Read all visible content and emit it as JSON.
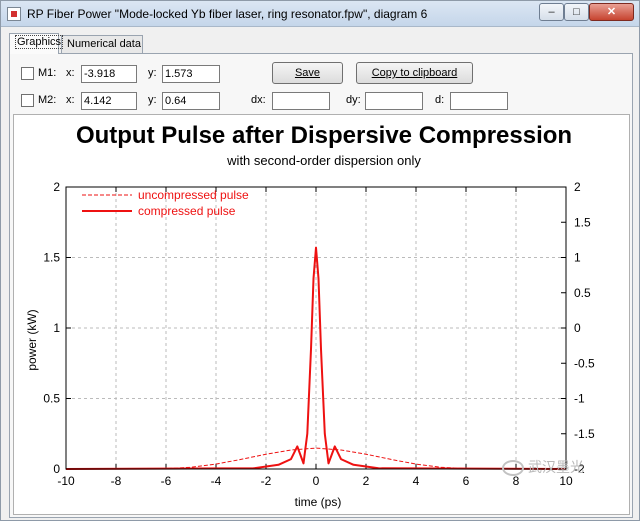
{
  "window": {
    "title": "RP Fiber Power \"Mode-locked Yb fiber laser, ring resonator.fpw\", diagram 6",
    "min_glyph": "–",
    "max_glyph": "□",
    "close_glyph": "✕"
  },
  "tabs": [
    {
      "label": "Graphics"
    },
    {
      "label": "Numerical data"
    }
  ],
  "markers": {
    "m1": {
      "label": "M1:",
      "x_label": "x:",
      "x_value": "-3.918",
      "y_label": "y:",
      "y_value": "1.573"
    },
    "m2": {
      "label": "M2:",
      "x_label": "x:",
      "x_value": "4.142",
      "y_label": "y:",
      "y_value": "0.64"
    },
    "dx_label": "dx:",
    "dy_label": "dy:",
    "d_label": "d:",
    "dx_value": "",
    "dy_value": "",
    "d_value": ""
  },
  "buttons": {
    "save_label": "Save",
    "copy_label": "Copy to clipboard"
  },
  "chart_data": {
    "type": "line",
    "title": "Output Pulse after Dispersive Compression",
    "subtitle": "with second-order dispersion only",
    "xlabel": "time (ps)",
    "ylabel": "power (kW)",
    "xlim": [
      -10,
      10
    ],
    "ylim": [
      0,
      2
    ],
    "xticks": [
      -10,
      -8,
      -6,
      -4,
      -2,
      0,
      2,
      4,
      6,
      8,
      10
    ],
    "yticks": [
      0,
      0.5,
      1,
      1.5,
      2
    ],
    "y2lim": [
      -2,
      2
    ],
    "y2ticks": [
      -2,
      -1.5,
      -1,
      -0.5,
      0,
      0.5,
      1,
      1.5,
      2
    ],
    "grid": true,
    "legend_position": "top-left",
    "color": "#ee1111",
    "series": [
      {
        "name": "uncompressed pulse",
        "style": "dashed",
        "x": [
          -10,
          -6,
          -5,
          -4,
          -3,
          -2,
          -1,
          0,
          1,
          2,
          3,
          4,
          5,
          6,
          10
        ],
        "y": [
          0,
          0.003,
          0.012,
          0.035,
          0.068,
          0.105,
          0.135,
          0.148,
          0.135,
          0.105,
          0.068,
          0.035,
          0.012,
          0.003,
          0
        ]
      },
      {
        "name": "compressed pulse",
        "style": "solid",
        "x": [
          -10,
          -2.5,
          -1.5,
          -1.0,
          -0.75,
          -0.5,
          -0.35,
          -0.2,
          -0.1,
          0,
          0.1,
          0.2,
          0.35,
          0.5,
          0.75,
          1.0,
          1.5,
          2.5,
          10
        ],
        "y": [
          0,
          0.005,
          0.03,
          0.07,
          0.16,
          0.04,
          0.25,
          0.85,
          1.35,
          1.57,
          1.35,
          0.85,
          0.25,
          0.04,
          0.16,
          0.07,
          0.03,
          0.005,
          0
        ]
      }
    ]
  },
  "watermark": {
    "text": "武汉墨光"
  }
}
